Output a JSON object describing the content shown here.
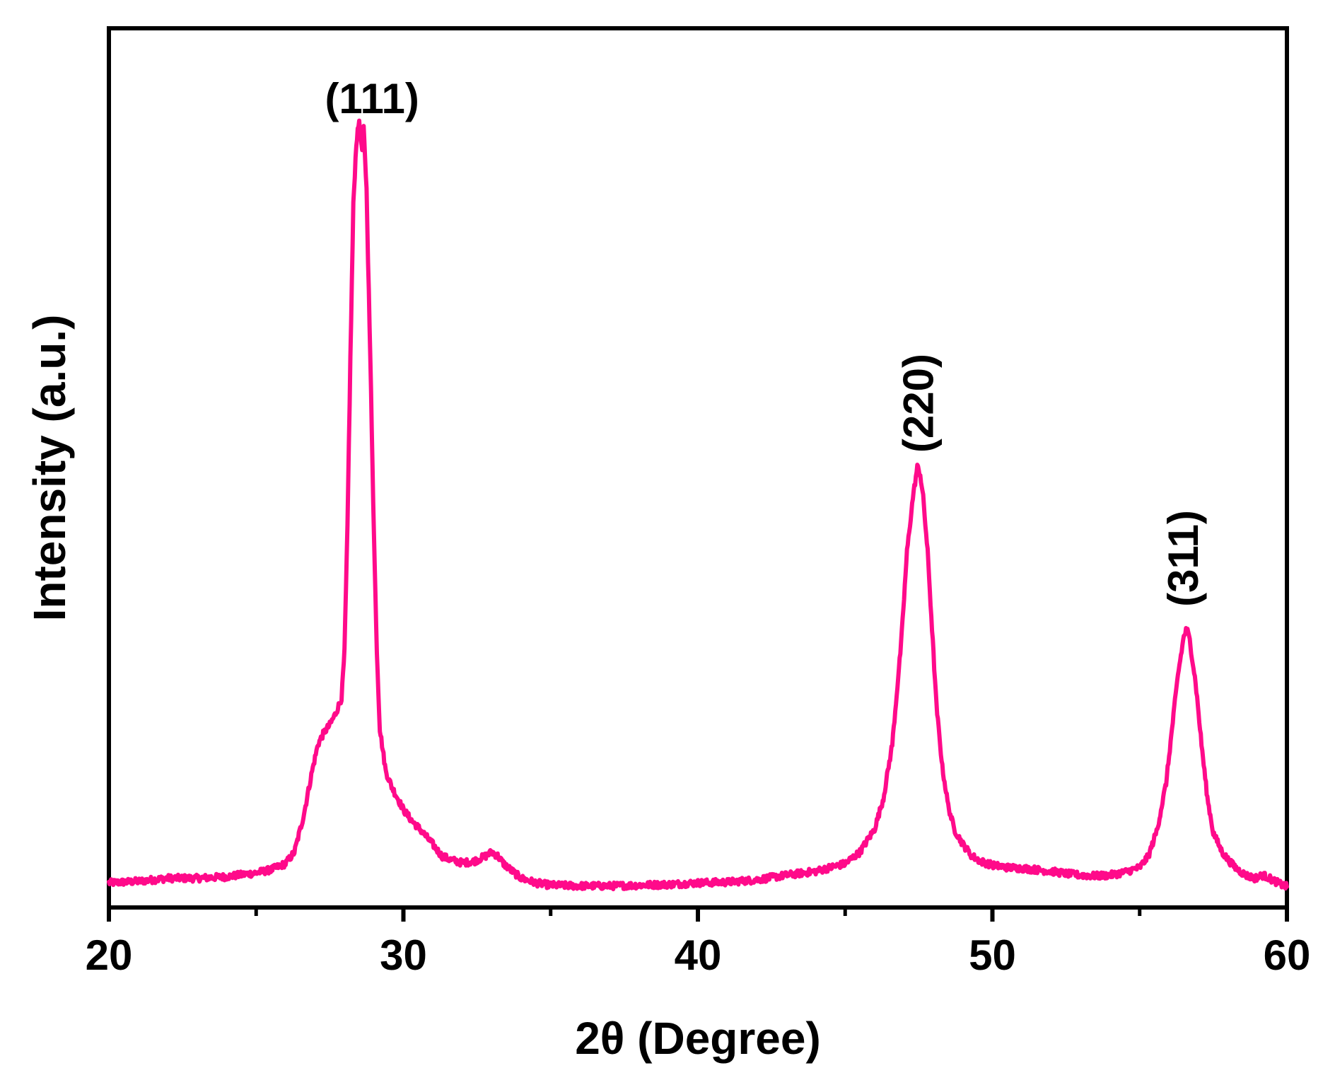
{
  "chart_data": {
    "type": "line",
    "title": "",
    "xlabel": "2θ (Degree)",
    "ylabel": "Intensity (a.u.)",
    "xlim": [
      20,
      60
    ],
    "ylim": [
      0,
      110
    ],
    "x_ticks": [
      20,
      30,
      40,
      50,
      60
    ],
    "x_minor_ticks": [
      25,
      35,
      45,
      55
    ],
    "y_ticks_visible": false,
    "grid": false,
    "legend": "none",
    "line_color": "#ff0a8a",
    "annotations": [
      {
        "text": "(111)",
        "x": 28.6,
        "y": 101,
        "rotation": 0
      },
      {
        "text": "(220)",
        "x": 47.5,
        "y": 56,
        "rotation": -90
      },
      {
        "text": "(311)",
        "x": 56.5,
        "y": 36,
        "rotation": -90
      }
    ],
    "series": [
      {
        "name": "",
        "x": [
          20.0,
          21.0,
          22.0,
          23.0,
          24.0,
          25.0,
          25.5,
          26.0,
          26.3,
          26.6,
          26.9,
          27.1,
          27.3,
          27.5,
          27.7,
          27.9,
          28.0,
          28.1,
          28.2,
          28.3,
          28.4,
          28.5,
          28.55,
          28.6,
          28.65,
          28.7,
          28.75,
          28.8,
          28.9,
          29.0,
          29.1,
          29.2,
          29.4,
          29.6,
          29.8,
          30.0,
          30.3,
          30.6,
          31.0,
          31.3,
          31.6,
          32.0,
          32.4,
          32.8,
          33.0,
          33.2,
          33.4,
          33.7,
          34.0,
          34.5,
          35.0,
          36.0,
          37.0,
          38.0,
          39.0,
          40.0,
          41.0,
          42.0,
          43.0,
          44.0,
          45.0,
          45.5,
          46.0,
          46.3,
          46.6,
          46.9,
          47.1,
          47.3,
          47.45,
          47.55,
          47.65,
          47.8,
          47.95,
          48.1,
          48.3,
          48.5,
          48.7,
          49.0,
          49.3,
          49.6,
          50.0,
          50.5,
          51.0,
          51.5,
          52.0,
          52.5,
          53.0,
          53.5,
          54.0,
          54.5,
          55.0,
          55.3,
          55.6,
          55.9,
          56.1,
          56.3,
          56.5,
          56.6,
          56.7,
          56.9,
          57.1,
          57.3,
          57.5,
          57.8,
          58.0,
          58.3,
          58.6,
          58.9,
          59.2,
          59.5,
          59.8,
          60.0
        ],
        "y": [
          2.0,
          2.2,
          2.6,
          2.6,
          2.8,
          3.3,
          3.7,
          4.5,
          6.0,
          10.5,
          16.5,
          20.0,
          21.5,
          22.5,
          24.0,
          26.0,
          32.0,
          48.0,
          70.0,
          90.0,
          98.0,
          101.0,
          99.0,
          97.0,
          100.0,
          96.0,
          92.0,
          83.0,
          66.0,
          47.0,
          32.0,
          22.0,
          16.5,
          14.5,
          13.0,
          11.5,
          10.0,
          8.8,
          7.0,
          5.5,
          5.0,
          4.6,
          4.8,
          5.5,
          6.0,
          5.5,
          4.5,
          3.5,
          2.6,
          2.0,
          1.7,
          1.6,
          1.6,
          1.7,
          1.8,
          2.0,
          2.1,
          2.4,
          3.0,
          3.5,
          4.5,
          6.0,
          9.0,
          13.0,
          20.0,
          33.0,
          45.0,
          52.0,
          56.0,
          55.0,
          52.0,
          45.0,
          35.0,
          25.0,
          17.0,
          12.0,
          9.0,
          7.0,
          5.5,
          4.8,
          4.3,
          4.0,
          3.9,
          3.7,
          3.5,
          3.2,
          3.0,
          2.9,
          3.0,
          3.4,
          4.0,
          5.5,
          9.0,
          15.0,
          22.0,
          29.0,
          34.0,
          35.0,
          33.5,
          28.0,
          20.0,
          13.0,
          8.5,
          6.0,
          5.0,
          3.8,
          3.0,
          2.6,
          3.0,
          2.4,
          1.8,
          1.5
        ]
      }
    ]
  }
}
